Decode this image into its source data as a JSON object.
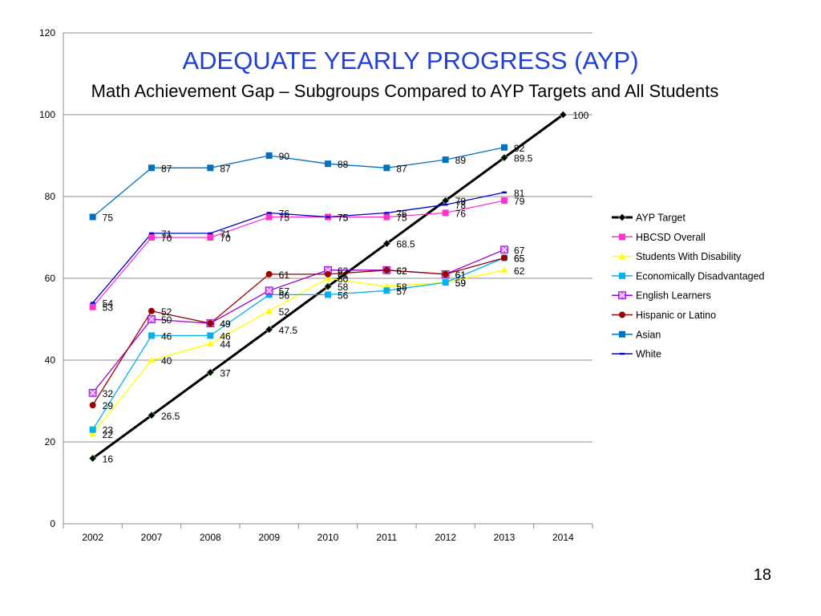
{
  "slide": {
    "title": "ADEQUATE YEARLY PROGRESS (AYP)",
    "subtitle": "Math Achievement Gap – Subgroups Compared to AYP Targets and All Students",
    "page_number": "18"
  },
  "chart_data": {
    "type": "line",
    "title": "ADEQUATE YEARLY PROGRESS (AYP)",
    "subtitle": "Math Achievement Gap – Subgroups Compared to AYP Targets and All Students",
    "xlabel": "",
    "ylabel": "",
    "categories": [
      "2002",
      "2007",
      "2008",
      "2009",
      "2010",
      "2011",
      "2012",
      "2013",
      "2014"
    ],
    "ylim": [
      0,
      120
    ],
    "yticks": [
      0,
      20,
      40,
      60,
      80,
      100,
      120
    ],
    "grid": true,
    "legend_position": "right",
    "series": [
      {
        "name": "AYP Target",
        "color": "#000000",
        "marker": "diamond",
        "values": [
          16,
          26.5,
          37,
          47.5,
          58,
          68.5,
          79,
          89.5,
          100
        ],
        "labels": [
          "16",
          "26.5",
          "37",
          "47.5",
          "58",
          "68.5",
          "79",
          "89.5",
          "100"
        ]
      },
      {
        "name": "HBCSD Overall",
        "color": "#ff33cc",
        "marker": "square",
        "values": [
          53,
          70,
          70,
          75,
          75,
          75,
          76,
          79,
          null
        ],
        "labels": [
          "53",
          "70",
          "70",
          "75",
          "75",
          "75",
          "76",
          "79",
          ""
        ]
      },
      {
        "name": "Students With Disability",
        "color": "#ffff00",
        "marker": "triangle",
        "values": [
          22,
          40,
          44,
          52,
          60,
          58,
          59,
          62,
          null
        ],
        "labels": [
          "22",
          "40",
          "44",
          "52",
          "60",
          "58",
          "59",
          "62",
          ""
        ]
      },
      {
        "name": "Economically Disadvantaged",
        "color": "#00b0f0",
        "marker": "square",
        "values": [
          23,
          46,
          46,
          56,
          56,
          57,
          59,
          65,
          null
        ],
        "labels": [
          "23",
          "46",
          "46",
          "56",
          "56",
          "57",
          "59",
          "65",
          ""
        ]
      },
      {
        "name": "English Learners",
        "color": "#9900cc",
        "marker": "x-square",
        "values": [
          32,
          50,
          49,
          57,
          62,
          62,
          61,
          67,
          null
        ],
        "labels": [
          "32",
          "50",
          "49",
          "57",
          "62",
          "62",
          "61",
          "67",
          ""
        ]
      },
      {
        "name": "Hispanic or Latino",
        "color": "#990000",
        "marker": "circle",
        "values": [
          29,
          52,
          49,
          61,
          61,
          62,
          61,
          65,
          null
        ],
        "labels": [
          "29",
          "52",
          "49",
          "61",
          "61",
          "62",
          "61",
          "65",
          ""
        ]
      },
      {
        "name": "Asian",
        "color": "#0070c0",
        "marker": "square",
        "values": [
          75,
          87,
          87,
          90,
          88,
          87,
          89,
          92,
          null
        ],
        "labels": [
          "75",
          "87",
          "87",
          "90",
          "88",
          "87",
          "89",
          "92",
          ""
        ]
      },
      {
        "name": "White",
        "color": "#0000cc",
        "marker": "dash",
        "values": [
          54,
          71,
          71,
          76,
          75,
          76,
          78,
          81,
          null
        ],
        "labels": [
          "54",
          "71",
          "71",
          "76",
          "75",
          "76",
          "78",
          "81",
          ""
        ]
      }
    ]
  }
}
